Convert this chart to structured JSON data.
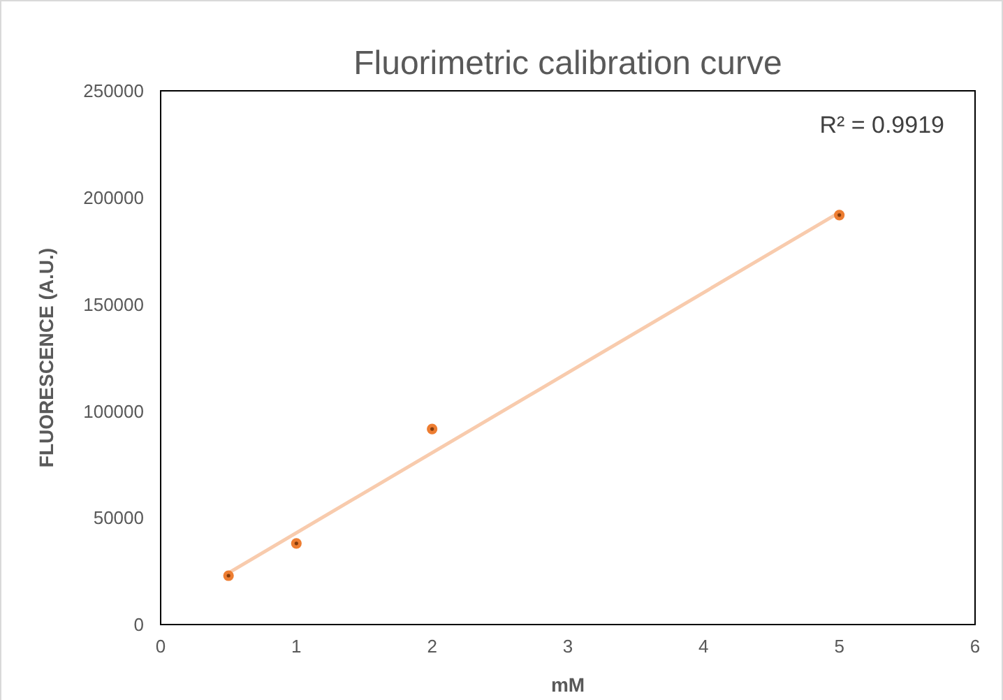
{
  "chart_data": {
    "type": "scatter",
    "title": "Fluorimetric calibration curve",
    "xlabel": "mM",
    "ylabel": "FLUORESCENCE (A.U.)",
    "annotations": [
      "R² = 0.9919"
    ],
    "xlim": [
      0,
      6
    ],
    "xticks": [
      0,
      1,
      2,
      3,
      4,
      5,
      6
    ],
    "ylim": [
      0,
      250000
    ],
    "yticks": [
      0,
      50000,
      100000,
      150000,
      200000,
      250000
    ],
    "series": [
      {
        "type": "line",
        "color": "#f8cbad",
        "x": [
          0.5,
          5
        ],
        "values": [
          24200,
          193000
        ],
        "marker": "none",
        "line_style": "solid"
      },
      {
        "color": "#ed7d31",
        "x": [
          0.5,
          1,
          2,
          5
        ],
        "values": [
          22900,
          38000,
          91600,
          191800
        ],
        "marker": "circle"
      }
    ]
  }
}
